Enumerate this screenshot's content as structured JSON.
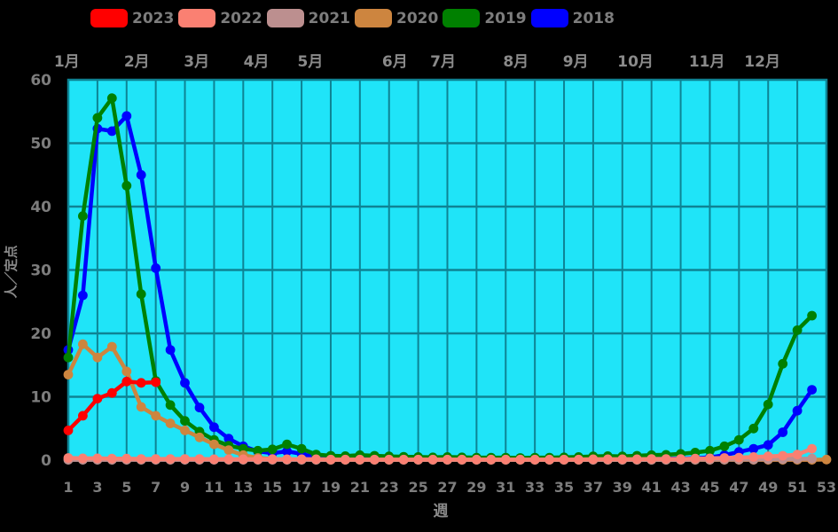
{
  "page": {
    "background": "#000000",
    "plot_bg": "#1fe4f8",
    "grid_color": "#0e8394",
    "text_color": "#8a8a8a"
  },
  "legend": {
    "items": [
      {
        "label": "2023",
        "color": "#ff0000"
      },
      {
        "label": "2022",
        "color": "#fa8072"
      },
      {
        "label": "2021",
        "color": "#bc8f8f"
      },
      {
        "label": "2020",
        "color": "#cd853f"
      },
      {
        "label": "2019",
        "color": "#008000"
      },
      {
        "label": "2018",
        "color": "#0000ff"
      }
    ]
  },
  "chart_data": {
    "type": "line",
    "title": "",
    "xlabel": "週",
    "ylabel": "人／定点",
    "xlim": [
      1,
      53
    ],
    "ylim": [
      0,
      60
    ],
    "grid": true,
    "legend_position": "top",
    "x_tick_labels": [
      1,
      3,
      5,
      7,
      9,
      11,
      13,
      15,
      17,
      19,
      21,
      23,
      25,
      27,
      29,
      31,
      33,
      35,
      37,
      39,
      41,
      43,
      45,
      47,
      49,
      51,
      53
    ],
    "y_tick_labels": [
      0,
      10,
      20,
      30,
      40,
      50,
      60
    ],
    "month_labels": [
      {
        "label": "1月",
        "week": 0.9
      },
      {
        "label": "2月",
        "week": 5.7
      },
      {
        "label": "3月",
        "week": 9.8
      },
      {
        "label": "4月",
        "week": 13.9
      },
      {
        "label": "5月",
        "week": 17.6
      },
      {
        "label": "6月",
        "week": 23.4
      },
      {
        "label": "7月",
        "week": 26.7
      },
      {
        "label": "8月",
        "week": 31.7
      },
      {
        "label": "9月",
        "week": 35.8
      },
      {
        "label": "10月",
        "week": 39.9
      },
      {
        "label": "11月",
        "week": 44.8
      },
      {
        "label": "12月",
        "week": 48.6
      }
    ],
    "x_unit": "week",
    "series": [
      {
        "name": "2023",
        "color": "#ff0000",
        "start_week": 1,
        "values": [
          4.7,
          7.0,
          9.7,
          10.6,
          12.4,
          12.2,
          12.3
        ]
      },
      {
        "name": "2022",
        "color": "#fa8072",
        "start_week": 1,
        "values": [
          0.35,
          0.3,
          0.3,
          0.25,
          0.25,
          0.2,
          0.2,
          0.2,
          0.2,
          0.2,
          0.15,
          0.15,
          0.15,
          0.15,
          0.15,
          0.15,
          0.15,
          0.15,
          0.1,
          0.1,
          0.1,
          0.1,
          0.1,
          0.1,
          0.1,
          0.1,
          0.1,
          0.1,
          0.1,
          0.1,
          0.1,
          0.1,
          0.1,
          0.1,
          0.1,
          0.1,
          0.15,
          0.15,
          0.15,
          0.15,
          0.2,
          0.2,
          0.2,
          0.25,
          0.3,
          0.35,
          0.4,
          0.5,
          0.6,
          0.7,
          0.9,
          1.8
        ]
      },
      {
        "name": "2021",
        "color": "#bc8f8f",
        "start_week": 1,
        "values": [
          0.05,
          0.05,
          0.05,
          0.05,
          0.05,
          0.05,
          0.05,
          0.05,
          0.05,
          0.05,
          0.05,
          0.05,
          0.05,
          0.05,
          0.05,
          0.05,
          0.05,
          0.05,
          0.05,
          0.05,
          0.05,
          0.05,
          0.05,
          0.05,
          0.05,
          0.05,
          0.05,
          0.05,
          0.05,
          0.05,
          0.05,
          0.05,
          0.05,
          0.05,
          0.05,
          0.05,
          0.05,
          0.05,
          0.05,
          0.05,
          0.05,
          0.05,
          0.05,
          0.08,
          0.08,
          0.1,
          0.1,
          0.1,
          0.15,
          0.15,
          0.2,
          0.25
        ]
      },
      {
        "name": "2020",
        "color": "#cd853f",
        "start_week": 1,
        "values": [
          13.5,
          18.3,
          16.2,
          17.9,
          14.0,
          8.4,
          7.0,
          5.8,
          4.7,
          3.6,
          2.5,
          1.6,
          0.8,
          0.35,
          0.2,
          0.1,
          0.1,
          0.05,
          0.05,
          0.05,
          0.05,
          0.05,
          0.05,
          0.05,
          0.05,
          0.05,
          0.05,
          0.05,
          0.05,
          0.05,
          0.05,
          0.05,
          0.05,
          0.05,
          0.05,
          0.05,
          0.05,
          0.05,
          0.05,
          0.05,
          0.05,
          0.05,
          0.05,
          0.05,
          0.05,
          0.05,
          0.05,
          0.05,
          0.05,
          0.05,
          0.05,
          0.05,
          0.1
        ]
      },
      {
        "name": "2019",
        "color": "#008000",
        "start_week": 1,
        "values": [
          16.2,
          38.5,
          54.0,
          57.1,
          43.3,
          26.2,
          12.5,
          8.7,
          6.2,
          4.5,
          3.2,
          2.3,
          1.8,
          1.5,
          1.7,
          2.5,
          1.8,
          0.9,
          0.7,
          0.65,
          0.8,
          0.7,
          0.6,
          0.55,
          0.5,
          0.45,
          0.5,
          0.45,
          0.4,
          0.4,
          0.4,
          0.35,
          0.4,
          0.4,
          0.45,
          0.5,
          0.6,
          0.65,
          0.6,
          0.7,
          0.8,
          0.85,
          1.0,
          1.2,
          1.5,
          2.2,
          3.2,
          5.0,
          8.8,
          15.2,
          20.5,
          22.8
        ]
      },
      {
        "name": "2018",
        "color": "#0000ff",
        "start_week": 1,
        "values": [
          17.4,
          26.0,
          52.3,
          51.9,
          54.3,
          45.0,
          30.3,
          17.4,
          12.2,
          8.3,
          5.2,
          3.4,
          2.2,
          1.4,
          1.1,
          1.4,
          1.0,
          0.45,
          0.3,
          0.25,
          0.2,
          0.2,
          0.2,
          0.2,
          0.15,
          0.15,
          0.15,
          0.15,
          0.15,
          0.15,
          0.15,
          0.15,
          0.15,
          0.15,
          0.15,
          0.15,
          0.15,
          0.15,
          0.2,
          0.2,
          0.2,
          0.25,
          0.25,
          0.3,
          0.45,
          0.8,
          1.3,
          1.8,
          2.4,
          4.4,
          7.8,
          11.1
        ]
      }
    ]
  }
}
